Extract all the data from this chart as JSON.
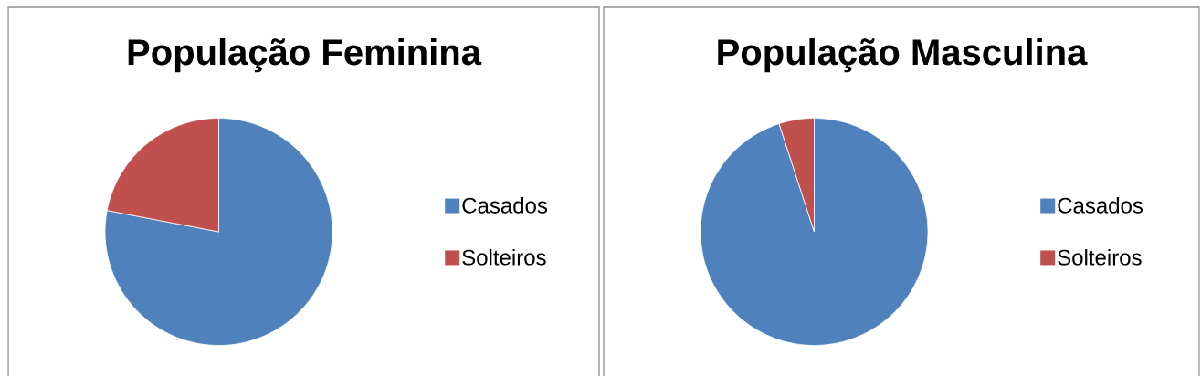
{
  "chart_data": [
    {
      "type": "pie",
      "title": "População Feminina",
      "categories": [
        "Casados",
        "Solteiros"
      ],
      "values": [
        78,
        22
      ],
      "colors": [
        "#4f81bd",
        "#c0504d"
      ],
      "legend": "right"
    },
    {
      "type": "pie",
      "title": "População Masculina",
      "categories": [
        "Casados",
        "Solteiros"
      ],
      "values": [
        95,
        5
      ],
      "colors": [
        "#4f81bd",
        "#c0504d"
      ],
      "legend": "right"
    }
  ]
}
